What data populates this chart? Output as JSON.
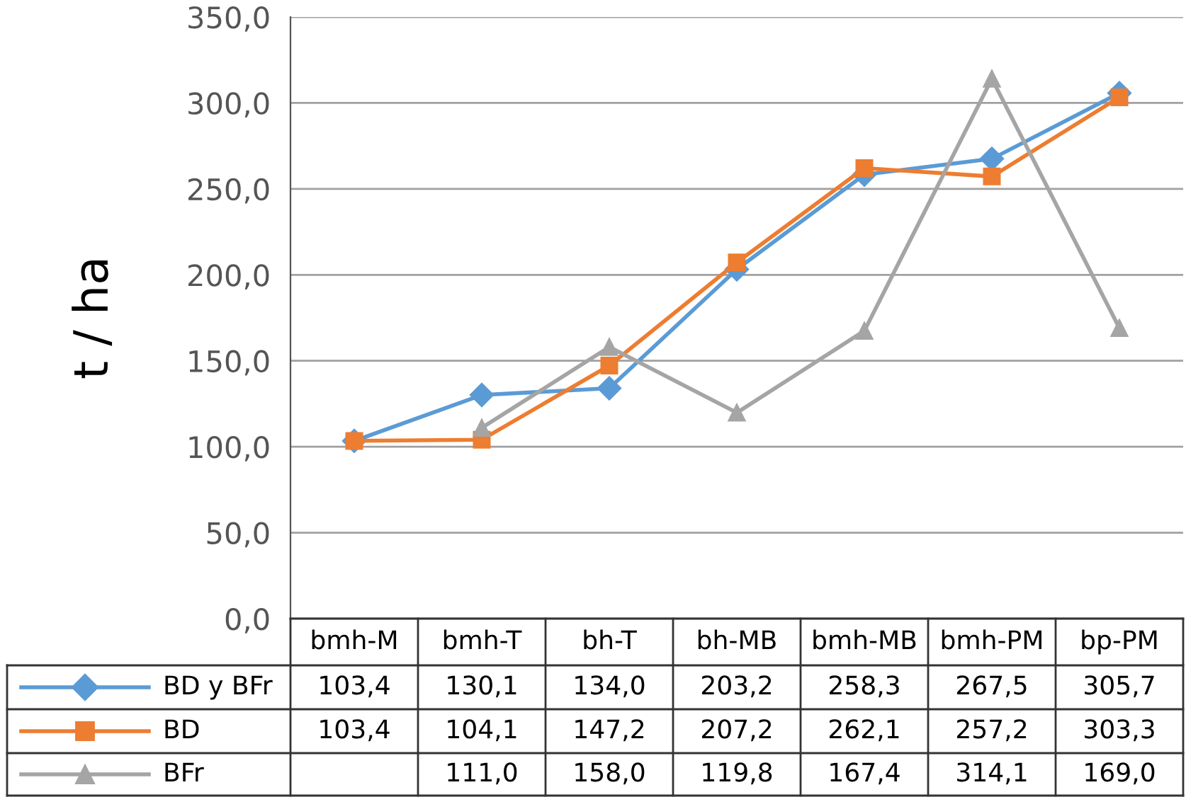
{
  "chart_data": {
    "type": "line",
    "ylabel": "t / ha",
    "categories": [
      "bmh-M",
      "bmh-T",
      "bh-T",
      "bh-MB",
      "bmh-MB",
      "bmh-PM",
      "bp-PM"
    ],
    "series": [
      {
        "name": "BD y BFr",
        "color": "#5b9bd5",
        "marker": "diamond",
        "values": [
          103.4,
          130.1,
          134.0,
          203.2,
          258.3,
          267.5,
          305.7
        ],
        "value_labels": [
          "103,4",
          "130,1",
          "134,0",
          "203,2",
          "258,3",
          "267,5",
          "305,7"
        ]
      },
      {
        "name": "BD",
        "color": "#ed7d31",
        "marker": "square",
        "values": [
          103.4,
          104.1,
          147.2,
          207.2,
          262.1,
          257.2,
          303.3
        ],
        "value_labels": [
          "103,4",
          "104,1",
          "147,2",
          "207,2",
          "262,1",
          "257,2",
          "303,3"
        ]
      },
      {
        "name": "BFr",
        "color": "#a5a5a5",
        "marker": "triangle",
        "values": [
          null,
          111.0,
          158.0,
          119.8,
          167.4,
          314.1,
          169.0
        ],
        "value_labels": [
          null,
          "111,0",
          "158,0",
          "119,8",
          "167,4",
          "314,1",
          "169,0"
        ]
      }
    ],
    "ylim": [
      0,
      350
    ],
    "yticks": [
      {
        "value": 0,
        "label": "0,0"
      },
      {
        "value": 50,
        "label": "50,0"
      },
      {
        "value": 100,
        "label": "100,0"
      },
      {
        "value": 150,
        "label": "150,0"
      },
      {
        "value": 200,
        "label": "200,0"
      },
      {
        "value": 250,
        "label": "250,0"
      },
      {
        "value": 300,
        "label": "300,0"
      },
      {
        "value": 350,
        "label": "350,0"
      }
    ],
    "grid": "y",
    "legend": "bottom left"
  }
}
